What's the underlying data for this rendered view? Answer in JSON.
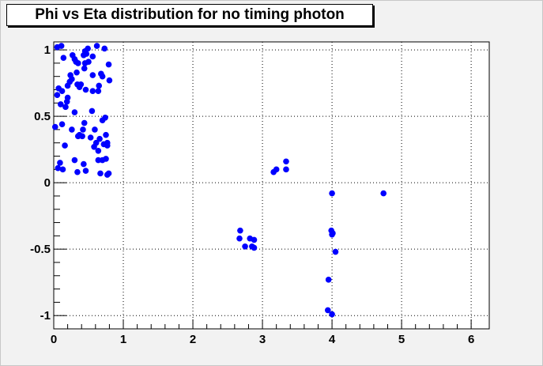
{
  "chart_data": {
    "type": "scatter",
    "title": "Phi vs Eta distribution for no timing photon",
    "xlabel": "",
    "ylabel": "",
    "xlim": [
      0,
      6.26
    ],
    "ylim": [
      -1.1,
      1.06
    ],
    "xticks": [
      "0",
      "1",
      "2",
      "3",
      "4",
      "5",
      "6"
    ],
    "yticks": [
      "1",
      "0.5",
      "0",
      "-0.5",
      "-1"
    ],
    "grid": true,
    "marker_color": "#0000ff",
    "points": [
      [
        0.05,
        1.02
      ],
      [
        0.11,
        1.03
      ],
      [
        0.14,
        0.94
      ],
      [
        0.27,
        0.96
      ],
      [
        0.3,
        0.93
      ],
      [
        0.32,
        0.91
      ],
      [
        0.35,
        0.9
      ],
      [
        0.45,
        0.99
      ],
      [
        0.49,
        1.01
      ],
      [
        0.43,
        0.96
      ],
      [
        0.47,
        0.97
      ],
      [
        0.45,
        0.9
      ],
      [
        0.5,
        0.91
      ],
      [
        0.44,
        0.86
      ],
      [
        0.62,
        1.03
      ],
      [
        0.73,
        1.01
      ],
      [
        0.56,
        0.95
      ],
      [
        0.79,
        0.89
      ],
      [
        0.33,
        0.83
      ],
      [
        0.24,
        0.81
      ],
      [
        0.26,
        0.78
      ],
      [
        0.23,
        0.76
      ],
      [
        0.2,
        0.73
      ],
      [
        0.56,
        0.81
      ],
      [
        0.68,
        0.82
      ],
      [
        0.7,
        0.8
      ],
      [
        0.8,
        0.77
      ],
      [
        0.34,
        0.74
      ],
      [
        0.39,
        0.74
      ],
      [
        0.37,
        0.72
      ],
      [
        0.46,
        0.7
      ],
      [
        0.56,
        0.69
      ],
      [
        0.64,
        0.69
      ],
      [
        0.65,
        0.73
      ],
      [
        0.07,
        0.71
      ],
      [
        0.05,
        0.66
      ],
      [
        0.12,
        0.69
      ],
      [
        0.2,
        0.64
      ],
      [
        0.19,
        0.61
      ],
      [
        0.1,
        0.59
      ],
      [
        0.17,
        0.57
      ],
      [
        0.3,
        0.53
      ],
      [
        0.55,
        0.54
      ],
      [
        0.74,
        0.49
      ],
      [
        0.7,
        0.47
      ],
      [
        0.12,
        0.44
      ],
      [
        0.44,
        0.45
      ],
      [
        0.02,
        0.42
      ],
      [
        0.26,
        0.4
      ],
      [
        0.42,
        0.4
      ],
      [
        0.59,
        0.4
      ],
      [
        0.37,
        0.36
      ],
      [
        0.35,
        0.35
      ],
      [
        0.41,
        0.35
      ],
      [
        0.53,
        0.34
      ],
      [
        0.75,
        0.36
      ],
      [
        0.16,
        0.28
      ],
      [
        0.66,
        0.33
      ],
      [
        0.61,
        0.3
      ],
      [
        0.77,
        0.3
      ],
      [
        0.72,
        0.29
      ],
      [
        0.58,
        0.27
      ],
      [
        0.64,
        0.24
      ],
      [
        0.77,
        0.28
      ],
      [
        0.3,
        0.17
      ],
      [
        0.09,
        0.15
      ],
      [
        0.43,
        0.14
      ],
      [
        0.64,
        0.17
      ],
      [
        0.7,
        0.17
      ],
      [
        0.75,
        0.18
      ],
      [
        0.06,
        0.11
      ],
      [
        0.13,
        0.1
      ],
      [
        0.34,
        0.08
      ],
      [
        0.46,
        0.09
      ],
      [
        0.67,
        0.07
      ],
      [
        0.77,
        0.06
      ],
      [
        0.79,
        0.07
      ],
      [
        2.68,
        -0.36
      ],
      [
        2.67,
        -0.42
      ],
      [
        2.75,
        -0.48
      ],
      [
        2.82,
        -0.42
      ],
      [
        2.85,
        -0.48
      ],
      [
        2.88,
        -0.43
      ],
      [
        2.88,
        -0.49
      ],
      [
        3.16,
        0.08
      ],
      [
        3.2,
        0.1
      ],
      [
        3.34,
        0.16
      ],
      [
        3.34,
        0.1
      ],
      [
        4.0,
        -0.08
      ],
      [
        3.99,
        -0.36
      ],
      [
        4.0,
        -0.39
      ],
      [
        4.01,
        -0.38
      ],
      [
        4.05,
        -0.52
      ],
      [
        3.95,
        -0.73
      ],
      [
        3.94,
        -0.96
      ],
      [
        4.0,
        -0.99
      ],
      [
        4.74,
        -0.08
      ]
    ]
  }
}
